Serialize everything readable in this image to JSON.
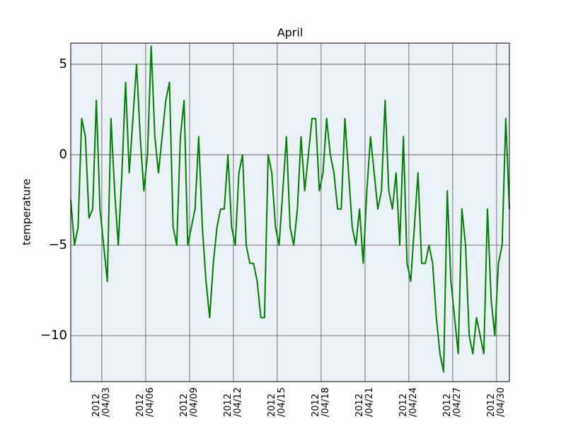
{
  "chart_data": {
    "type": "line",
    "title": "April",
    "y_label": "temperature",
    "color": "#008000",
    "grid": true,
    "xlim": [
      "2012/03/31 21:00",
      "2012/04/30 21:00"
    ],
    "ylim": [
      -12.54,
      6.17
    ],
    "yticks": [
      {
        "value": -10,
        "label": "−10"
      },
      {
        "value": -5,
        "label": "−5"
      },
      0,
      5
    ],
    "xticks": [
      {
        "value": "2012/04/03 00:00",
        "label": "2012\n/04/03"
      },
      {
        "value": "2012/04/06 00:00",
        "label": "2012\n/04/06"
      },
      {
        "value": "2012/04/09 00:00",
        "label": "2012\n/04/09"
      },
      {
        "value": "2012/04/12 00:00",
        "label": "2012\n/04/12"
      },
      {
        "value": "2012/04/15 00:00",
        "label": "2012\n/04/15"
      },
      {
        "value": "2012/04/18 00:00",
        "label": "2012\n/04/18"
      },
      {
        "value": "2012/04/21 00:00",
        "label": "2012\n/04/21"
      },
      {
        "value": "2012/04/24 00:00",
        "label": "2012\n/04/24"
      },
      {
        "value": "2012/04/27 00:00",
        "label": "2012\n/04/27"
      },
      {
        "value": "2012/04/30 00:00",
        "label": "2012\n/04/30"
      }
    ],
    "x": [
      "2012/03/31 21:00",
      "2012/04/01 03:00",
      "2012/04/01 09:00",
      "2012/04/01 15:00",
      "2012/04/01 21:00",
      "2012/04/02 03:00",
      "2012/04/02 09:00",
      "2012/04/02 15:00",
      "2012/04/02 21:00",
      "2012/04/03 03:00",
      "2012/04/03 09:00",
      "2012/04/03 15:00",
      "2012/04/03 21:00",
      "2012/04/04 03:00",
      "2012/04/04 09:00",
      "2012/04/04 15:00",
      "2012/04/04 21:00",
      "2012/04/05 03:00",
      "2012/04/05 09:00",
      "2012/04/05 15:00",
      "2012/04/05 21:00",
      "2012/04/06 03:00",
      "2012/04/06 09:00",
      "2012/04/06 15:00",
      "2012/04/06 21:00",
      "2012/04/07 03:00",
      "2012/04/07 09:00",
      "2012/04/07 15:00",
      "2012/04/07 21:00",
      "2012/04/08 03:00",
      "2012/04/08 09:00",
      "2012/04/08 15:00",
      "2012/04/08 21:00",
      "2012/04/09 03:00",
      "2012/04/09 09:00",
      "2012/04/09 15:00",
      "2012/04/09 21:00",
      "2012/04/10 03:00",
      "2012/04/10 09:00",
      "2012/04/10 15:00",
      "2012/04/10 21:00",
      "2012/04/11 03:00",
      "2012/04/11 09:00",
      "2012/04/11 15:00",
      "2012/04/11 21:00",
      "2012/04/12 03:00",
      "2012/04/12 09:00",
      "2012/04/12 15:00",
      "2012/04/12 21:00",
      "2012/04/13 03:00",
      "2012/04/13 09:00",
      "2012/04/13 15:00",
      "2012/04/13 21:00",
      "2012/04/14 03:00",
      "2012/04/14 09:00",
      "2012/04/14 15:00",
      "2012/04/14 21:00",
      "2012/04/15 03:00",
      "2012/04/15 09:00",
      "2012/04/15 15:00",
      "2012/04/15 21:00",
      "2012/04/16 03:00",
      "2012/04/16 09:00",
      "2012/04/16 15:00",
      "2012/04/16 21:00",
      "2012/04/17 03:00",
      "2012/04/17 09:00",
      "2012/04/17 15:00",
      "2012/04/17 21:00",
      "2012/04/18 03:00",
      "2012/04/18 09:00",
      "2012/04/18 15:00",
      "2012/04/18 21:00",
      "2012/04/19 03:00",
      "2012/04/19 09:00",
      "2012/04/19 15:00",
      "2012/04/19 21:00",
      "2012/04/20 03:00",
      "2012/04/20 09:00",
      "2012/04/20 15:00",
      "2012/04/20 21:00",
      "2012/04/21 03:00",
      "2012/04/21 09:00",
      "2012/04/21 15:00",
      "2012/04/21 21:00",
      "2012/04/22 03:00",
      "2012/04/22 09:00",
      "2012/04/22 15:00",
      "2012/04/22 21:00",
      "2012/04/23 03:00",
      "2012/04/23 09:00",
      "2012/04/23 15:00",
      "2012/04/23 21:00",
      "2012/04/24 03:00",
      "2012/04/24 09:00",
      "2012/04/24 15:00",
      "2012/04/24 21:00",
      "2012/04/25 03:00",
      "2012/04/25 09:00",
      "2012/04/25 15:00",
      "2012/04/25 21:00",
      "2012/04/26 03:00",
      "2012/04/26 09:00",
      "2012/04/26 15:00",
      "2012/04/26 21:00",
      "2012/04/27 03:00",
      "2012/04/27 09:00",
      "2012/04/27 15:00",
      "2012/04/27 21:00",
      "2012/04/28 03:00",
      "2012/04/28 09:00",
      "2012/04/28 15:00",
      "2012/04/28 21:00",
      "2012/04/29 03:00",
      "2012/04/29 09:00",
      "2012/04/29 15:00",
      "2012/04/29 21:00",
      "2012/04/30 03:00",
      "2012/04/30 09:00",
      "2012/04/30 15:00",
      "2012/04/30 21:00"
    ],
    "values": [
      -2.5,
      -5,
      -4,
      2,
      1,
      -3.5,
      -3,
      3,
      -3,
      -5,
      -7,
      2,
      -2,
      -5,
      -1,
      4,
      -1,
      2,
      5,
      1,
      -2,
      0,
      6,
      1,
      -1,
      1,
      3,
      4,
      -4,
      -5,
      1,
      3,
      -5,
      -4,
      -3,
      1,
      -4,
      -7,
      -9,
      -6,
      -4,
      -3,
      -3,
      0,
      -4,
      -5,
      -1,
      0,
      -5,
      -6,
      -6,
      -7,
      -9,
      -9,
      0,
      -1,
      -4,
      -5,
      -2,
      1,
      -4,
      -5,
      -3,
      1,
      -2,
      0,
      2,
      2,
      -2,
      -1,
      2,
      0,
      -1,
      -3,
      -3,
      2,
      -1,
      -4,
      -5,
      -3,
      -6,
      -2,
      1,
      -1,
      -3,
      -2,
      3,
      -2,
      -3,
      -1,
      -5,
      1,
      -6,
      -7,
      -4,
      -1,
      -6,
      -6,
      -5,
      -6,
      -9,
      -11,
      -12,
      -2,
      -7,
      -9,
      -11,
      -3,
      -5,
      -10,
      -11,
      -9,
      -10,
      -11,
      -3,
      -8,
      -10,
      -6,
      -5,
      2,
      -3
    ]
  }
}
